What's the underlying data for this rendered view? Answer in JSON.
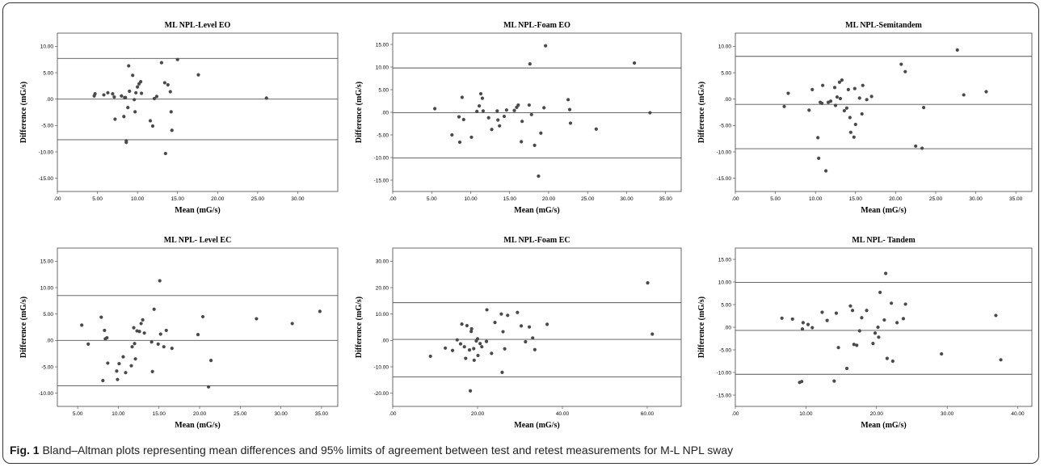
{
  "caption": {
    "label": "Fig. 1",
    "text": "Bland–Altman plots representing mean differences and 95% limits of agreement between test and retest measurements for M-L NPL sway"
  },
  "chart_data": [
    {
      "type": "scatter",
      "title": "ML NPL-Level EO",
      "xlabel": "Mean (mG/s)",
      "ylabel": "Difference (mG/s)",
      "xlim": [
        0,
        35
      ],
      "ylim": [
        -17.5,
        12.5
      ],
      "xticks": [
        0,
        5,
        10,
        15,
        20,
        25,
        30
      ],
      "xtick_labels": [
        ".00",
        "5.00",
        "10.00",
        "15.00",
        "20.00",
        "25.00",
        "30.00"
      ],
      "yticks": [
        10,
        5,
        0,
        -5,
        -10,
        -15
      ],
      "ytick_labels": [
        "10.00",
        "5.00",
        ".00",
        "-5.00",
        "-10.00",
        "-15.00"
      ],
      "reference_lines": [
        7.7,
        0,
        -7.7
      ],
      "points": [
        [
          4.6,
          0.6
        ],
        [
          4.7,
          1.0
        ],
        [
          5.8,
          0.8
        ],
        [
          6.3,
          1.2
        ],
        [
          6.9,
          1.0
        ],
        [
          7.1,
          0.4
        ],
        [
          7.2,
          -3.8
        ],
        [
          8.0,
          0.6
        ],
        [
          8.3,
          -3.3
        ],
        [
          8.4,
          0.3
        ],
        [
          8.5,
          0.3
        ],
        [
          8.6,
          -7.9
        ],
        [
          8.6,
          -8.2
        ],
        [
          8.8,
          -1.6
        ],
        [
          8.9,
          6.3
        ],
        [
          9.0,
          1.5
        ],
        [
          9.4,
          4.5
        ],
        [
          9.6,
          -0.1
        ],
        [
          9.7,
          -2.4
        ],
        [
          9.8,
          1.2
        ],
        [
          10.0,
          2.3
        ],
        [
          10.2,
          2.9
        ],
        [
          10.4,
          3.3
        ],
        [
          10.5,
          1.1
        ],
        [
          11.6,
          -4.1
        ],
        [
          11.9,
          -5.1
        ],
        [
          12.1,
          0.1
        ],
        [
          12.4,
          0.5
        ],
        [
          13.0,
          6.9
        ],
        [
          13.4,
          3.1
        ],
        [
          13.5,
          -10.3
        ],
        [
          13.8,
          2.7
        ],
        [
          14.1,
          1.4
        ],
        [
          14.2,
          -2.4
        ],
        [
          14.3,
          -5.9
        ],
        [
          15.0,
          7.5
        ],
        [
          17.6,
          4.6
        ],
        [
          26.1,
          0.2
        ]
      ]
    },
    {
      "type": "scatter",
      "title": "ML NPL-Foam EO",
      "xlabel": "Mean (mG/s)",
      "ylabel": "Difference (mG/s)",
      "xlim": [
        0,
        37
      ],
      "ylim": [
        -17.5,
        17.5
      ],
      "xticks": [
        0,
        5,
        10,
        15,
        20,
        25,
        30,
        35
      ],
      "xtick_labels": [
        ".00",
        "5.00",
        "10.00",
        "15.00",
        "20.00",
        "25.00",
        "30.00",
        "35.00"
      ],
      "yticks": [
        15,
        10,
        5,
        0,
        -5,
        -10,
        -15
      ],
      "ytick_labels": [
        "15.00",
        "10.00",
        "5.00",
        ".00",
        "-5.00",
        "-10.00",
        "-15.00"
      ],
      "reference_lines": [
        9.8,
        -0.1,
        -10.1
      ],
      "points": [
        [
          5.4,
          0.8
        ],
        [
          7.6,
          -5.0
        ],
        [
          8.5,
          -1.0
        ],
        [
          8.6,
          -6.6
        ],
        [
          8.9,
          3.3
        ],
        [
          9.1,
          -1.6
        ],
        [
          10.1,
          -5.5
        ],
        [
          10.8,
          0.2
        ],
        [
          11.1,
          1.4
        ],
        [
          11.3,
          4.1
        ],
        [
          11.5,
          3.1
        ],
        [
          11.6,
          0.3
        ],
        [
          12.3,
          -1.2
        ],
        [
          12.7,
          -3.8
        ],
        [
          13.4,
          0.3
        ],
        [
          13.5,
          -1.7
        ],
        [
          13.7,
          -3.0
        ],
        [
          14.3,
          -0.9
        ],
        [
          14.6,
          0.5
        ],
        [
          15.6,
          0.4
        ],
        [
          15.9,
          1.1
        ],
        [
          16.1,
          1.6
        ],
        [
          16.5,
          -6.5
        ],
        [
          16.6,
          -2.0
        ],
        [
          17.5,
          1.6
        ],
        [
          17.6,
          10.7
        ],
        [
          17.8,
          -0.5
        ],
        [
          18.2,
          -7.3
        ],
        [
          18.7,
          -14.1
        ],
        [
          19.0,
          -4.6
        ],
        [
          19.4,
          1.0
        ],
        [
          19.6,
          14.7
        ],
        [
          22.5,
          2.8
        ],
        [
          22.7,
          0.6
        ],
        [
          22.8,
          -2.4
        ],
        [
          26.1,
          -3.7
        ],
        [
          31.0,
          10.9
        ],
        [
          33.0,
          -0.1
        ]
      ]
    },
    {
      "type": "scatter",
      "title": "ML NPL-Semitandem",
      "xlabel": "Mean (mG/s)",
      "ylabel": "Difference (mG/s)",
      "xlim": [
        0,
        37
      ],
      "ylim": [
        -17.5,
        12.5
      ],
      "xticks": [
        0,
        5,
        10,
        15,
        20,
        25,
        30,
        35
      ],
      "xtick_labels": [
        ".00",
        "5.00",
        "10.00",
        "15.00",
        "20.00",
        "25.00",
        "30.00",
        "35.00"
      ],
      "yticks": [
        10,
        5,
        0,
        -5,
        -10,
        -15
      ],
      "ytick_labels": [
        "10.00",
        "5.00",
        ".00",
        "-5.00",
        "-10.00",
        "-15.00"
      ],
      "reference_lines": [
        8.1,
        -1.0,
        -9.4
      ],
      "points": [
        [
          6.1,
          -1.4
        ],
        [
          6.6,
          1.1
        ],
        [
          9.2,
          -2.1
        ],
        [
          9.6,
          1.8
        ],
        [
          10.3,
          -7.3
        ],
        [
          10.4,
          -11.2
        ],
        [
          10.6,
          -0.6
        ],
        [
          10.8,
          -0.8
        ],
        [
          10.9,
          2.6
        ],
        [
          11.3,
          -13.6
        ],
        [
          11.6,
          -0.6
        ],
        [
          11.9,
          -0.4
        ],
        [
          12.4,
          2.2
        ],
        [
          12.5,
          -1.2
        ],
        [
          12.7,
          0.4
        ],
        [
          13.0,
          3.2
        ],
        [
          13.1,
          0.1
        ],
        [
          13.3,
          3.6
        ],
        [
          13.6,
          -2.2
        ],
        [
          13.9,
          -1.7
        ],
        [
          14.1,
          1.8
        ],
        [
          14.3,
          -3.5
        ],
        [
          14.4,
          -6.3
        ],
        [
          14.8,
          -7.2
        ],
        [
          14.9,
          2.0
        ],
        [
          15.0,
          -4.8
        ],
        [
          15.5,
          0.2
        ],
        [
          15.8,
          -2.8
        ],
        [
          15.9,
          2.6
        ],
        [
          16.4,
          -0.1
        ],
        [
          17.0,
          0.5
        ],
        [
          20.7,
          6.6
        ],
        [
          21.2,
          5.2
        ],
        [
          22.5,
          -8.9
        ],
        [
          23.3,
          -9.3
        ],
        [
          23.5,
          -1.6
        ],
        [
          27.7,
          9.3
        ],
        [
          28.5,
          0.8
        ],
        [
          31.3,
          1.4
        ]
      ]
    },
    {
      "type": "scatter",
      "title": "ML NPL- Level EC",
      "xlabel": "Mean (mG/s)",
      "ylabel": "Difference (mG/s)",
      "xlim": [
        2.5,
        37
      ],
      "ylim": [
        -12.5,
        17.5
      ],
      "xticks": [
        5,
        10,
        15,
        20,
        25,
        30,
        35
      ],
      "xtick_labels": [
        "5.00",
        "10.00",
        "15.00",
        "20.00",
        "25.00",
        "30.00",
        "35.00"
      ],
      "yticks": [
        15,
        10,
        5,
        0,
        -5,
        -10
      ],
      "ytick_labels": [
        "15.00",
        "10.00",
        "5.00",
        ".00",
        "-5.00",
        "-10.00"
      ],
      "reference_lines": [
        8.5,
        0,
        -8.6
      ],
      "points": [
        [
          5.5,
          2.9
        ],
        [
          6.3,
          -0.7
        ],
        [
          7.9,
          4.4
        ],
        [
          8.1,
          -7.6
        ],
        [
          8.3,
          1.9
        ],
        [
          8.4,
          0.3
        ],
        [
          8.6,
          0.5
        ],
        [
          8.7,
          -4.3
        ],
        [
          9.8,
          -5.8
        ],
        [
          9.9,
          -7.4
        ],
        [
          10.1,
          -4.4
        ],
        [
          10.6,
          -3.1
        ],
        [
          10.9,
          -6.1
        ],
        [
          11.6,
          -4.8
        ],
        [
          11.7,
          -1.2
        ],
        [
          11.9,
          2.4
        ],
        [
          12.0,
          -0.6
        ],
        [
          12.1,
          -3.5
        ],
        [
          12.3,
          1.8
        ],
        [
          12.6,
          1.7
        ],
        [
          12.8,
          3.2
        ],
        [
          13.0,
          3.9
        ],
        [
          13.2,
          1.4
        ],
        [
          14.1,
          -0.3
        ],
        [
          14.2,
          -5.9
        ],
        [
          14.4,
          5.9
        ],
        [
          14.9,
          -0.7
        ],
        [
          15.1,
          11.3
        ],
        [
          15.2,
          1.2
        ],
        [
          15.6,
          -1.2
        ],
        [
          15.9,
          1.9
        ],
        [
          16.6,
          -1.5
        ],
        [
          19.8,
          1.1
        ],
        [
          20.4,
          4.5
        ],
        [
          21.1,
          -8.8
        ],
        [
          21.4,
          -3.8
        ],
        [
          27.0,
          4.1
        ],
        [
          31.4,
          3.2
        ],
        [
          34.8,
          5.5
        ]
      ]
    },
    {
      "type": "scatter",
      "title": "ML NPL-Foam EC",
      "xlabel": "Mean (mG/s)",
      "ylabel": "Difference (mG/s)",
      "xlim": [
        0,
        68
      ],
      "ylim": [
        -25,
        35
      ],
      "xticks": [
        0,
        20,
        40,
        60
      ],
      "xtick_labels": [
        ".00",
        "20.00",
        "40.00",
        "60.00"
      ],
      "yticks": [
        30,
        20,
        10,
        0,
        -10,
        -20
      ],
      "ytick_labels": [
        "30.00",
        "20.00",
        "10.00",
        ".00",
        "-10.00",
        "-20.00"
      ],
      "reference_lines": [
        14.3,
        0.4,
        -13.8
      ],
      "points": [
        [
          8.9,
          -6.0
        ],
        [
          12.4,
          -2.9
        ],
        [
          14.1,
          -3.8
        ],
        [
          15.2,
          0.2
        ],
        [
          16.0,
          -1.3
        ],
        [
          16.3,
          6.2
        ],
        [
          16.9,
          -2.4
        ],
        [
          17.2,
          -6.8
        ],
        [
          17.5,
          5.6
        ],
        [
          18.1,
          -3.6
        ],
        [
          18.3,
          -19.1
        ],
        [
          18.5,
          3.4
        ],
        [
          18.6,
          4.4
        ],
        [
          19.1,
          -3.1
        ],
        [
          19.2,
          -7.5
        ],
        [
          19.7,
          -0.2
        ],
        [
          20.0,
          0.6
        ],
        [
          20.1,
          -5.7
        ],
        [
          20.6,
          -1.2
        ],
        [
          21.0,
          -2.4
        ],
        [
          22.1,
          -0.4
        ],
        [
          22.2,
          11.6
        ],
        [
          23.3,
          -4.9
        ],
        [
          24.1,
          6.8
        ],
        [
          25.6,
          10.0
        ],
        [
          25.8,
          -12.1
        ],
        [
          26.0,
          3.3
        ],
        [
          26.4,
          -3.2
        ],
        [
          27.1,
          9.5
        ],
        [
          29.4,
          10.6
        ],
        [
          30.3,
          5.5
        ],
        [
          31.3,
          -0.5
        ],
        [
          32.2,
          5.1
        ],
        [
          33.0,
          0.9
        ],
        [
          33.5,
          -3.5
        ],
        [
          36.4,
          6.1
        ],
        [
          60.1,
          21.8
        ],
        [
          61.2,
          2.4
        ]
      ]
    },
    {
      "type": "scatter",
      "title": "ML NPL- Tandem",
      "xlabel": "Mean (mG/s)",
      "ylabel": "Difference (mG/s)",
      "xlim": [
        0,
        42
      ],
      "ylim": [
        -17.5,
        17.5
      ],
      "xticks": [
        0,
        10,
        20,
        30,
        40
      ],
      "xtick_labels": [
        ".00",
        "10.00",
        "20.00",
        "30.00",
        "40.00"
      ],
      "yticks": [
        15,
        10,
        5,
        0,
        -5,
        -10,
        -15
      ],
      "ytick_labels": [
        "15.00",
        "10.00",
        "5.00",
        ".00",
        "-5.00",
        "-10.00",
        "-15.00"
      ],
      "reference_lines": [
        9.9,
        -0.7,
        -10.4
      ],
      "points": [
        [
          6.6,
          2.0
        ],
        [
          8.1,
          1.8
        ],
        [
          9.1,
          -12.2
        ],
        [
          9.4,
          -12.0
        ],
        [
          9.5,
          -0.4
        ],
        [
          9.6,
          1.0
        ],
        [
          10.3,
          0.6
        ],
        [
          10.9,
          -0.1
        ],
        [
          12.3,
          3.3
        ],
        [
          13.0,
          1.5
        ],
        [
          14.0,
          -11.9
        ],
        [
          14.3,
          3.1
        ],
        [
          14.6,
          -4.5
        ],
        [
          15.8,
          -9.1
        ],
        [
          16.3,
          4.7
        ],
        [
          16.6,
          3.7
        ],
        [
          16.8,
          -3.8
        ],
        [
          17.2,
          -4.0
        ],
        [
          17.6,
          -0.8
        ],
        [
          17.9,
          2.1
        ],
        [
          18.6,
          3.7
        ],
        [
          19.5,
          -3.6
        ],
        [
          19.8,
          -1.3
        ],
        [
          20.2,
          0.0
        ],
        [
          20.3,
          -2.2
        ],
        [
          20.5,
          7.7
        ],
        [
          21.1,
          1.6
        ],
        [
          21.3,
          11.9
        ],
        [
          21.5,
          -6.9
        ],
        [
          22.1,
          5.3
        ],
        [
          22.3,
          -7.5
        ],
        [
          22.9,
          1.0
        ],
        [
          23.8,
          1.9
        ],
        [
          24.1,
          5.1
        ],
        [
          29.2,
          -5.9
        ],
        [
          36.9,
          2.6
        ],
        [
          37.6,
          -7.2
        ]
      ]
    }
  ]
}
